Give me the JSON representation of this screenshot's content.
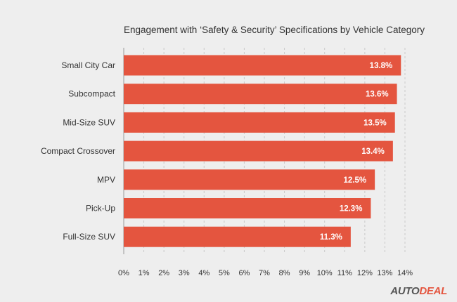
{
  "chart_data": {
    "type": "bar",
    "orientation": "horizontal",
    "title": "Engagement with ‘Safety & Security’ Specifications by Vehicle Category",
    "xlabel": "",
    "ylabel": "",
    "categories": [
      "Small City Car",
      "Subcompact",
      "Mid-Size SUV",
      "Compact Crossover",
      "MPV",
      "Pick-Up",
      "Full-Size SUV"
    ],
    "values": [
      13.8,
      13.6,
      13.5,
      13.4,
      12.5,
      12.3,
      11.3
    ],
    "value_labels": [
      "13.8%",
      "13.6%",
      "13.5%",
      "13.4%",
      "12.5%",
      "12.3%",
      "11.3%"
    ],
    "xlim": [
      0,
      14
    ],
    "x_ticks": [
      0,
      1,
      2,
      3,
      4,
      5,
      6,
      7,
      8,
      9,
      10,
      11,
      12,
      13,
      14
    ],
    "x_tick_labels": [
      "0%",
      "1%",
      "2%",
      "3%",
      "4%",
      "5%",
      "6%",
      "7%",
      "8%",
      "9%",
      "10%",
      "11%",
      "12%",
      "13%",
      "14%"
    ],
    "grid": "vertical-dashed",
    "bar_color": "#e4553f",
    "background_color": "#eeeeee"
  },
  "logo": {
    "auto": "AUTO",
    "deal": "DEAL"
  }
}
